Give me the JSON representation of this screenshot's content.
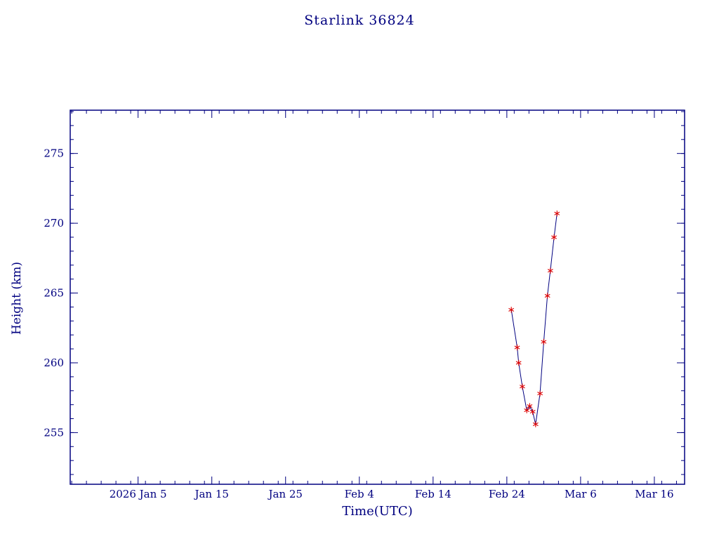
{
  "title": "Starlink 36824",
  "colors": {
    "axis": "#000080",
    "text": "#000080",
    "line": "#000080",
    "marker": "#dd0000",
    "background": "#ffffff"
  },
  "chart_data": {
    "type": "line",
    "title": "Starlink 36824",
    "xlabel": "Time(UTC)",
    "ylabel": "Height (km)",
    "x_unit": "day-of-year 2026",
    "xlim": [
      -4.2,
      79.1
    ],
    "ylim": [
      251.3,
      278.1
    ],
    "grid": false,
    "legend": "none",
    "x_ticks": [
      {
        "value": 5,
        "label": "2026 Jan 5"
      },
      {
        "value": 15,
        "label": "Jan 15"
      },
      {
        "value": 25,
        "label": "Jan 25"
      },
      {
        "value": 35,
        "label": "Feb 4"
      },
      {
        "value": 45,
        "label": "Feb 14"
      },
      {
        "value": 55,
        "label": "Feb 24"
      },
      {
        "value": 65,
        "label": "Mar 6"
      },
      {
        "value": 75,
        "label": "Mar 16"
      }
    ],
    "y_ticks": [
      {
        "value": 255,
        "label": "255"
      },
      {
        "value": 260,
        "label": "260"
      },
      {
        "value": 265,
        "label": "265"
      },
      {
        "value": 270,
        "label": "270"
      },
      {
        "value": 275,
        "label": "275"
      }
    ],
    "x_minor_step": 2,
    "y_minor_step": 1,
    "series": [
      {
        "name": "height",
        "marker": "asterisk",
        "x": [
          55.6,
          56.4,
          56.6,
          57.1,
          57.7,
          58.1,
          58.5,
          58.9,
          59.5,
          60.0,
          60.5,
          60.9,
          61.4,
          61.8
        ],
        "y": [
          263.8,
          261.1,
          260.0,
          258.3,
          256.6,
          256.9,
          256.5,
          255.6,
          257.8,
          261.5,
          264.8,
          266.6,
          269.0,
          270.7
        ]
      }
    ]
  }
}
